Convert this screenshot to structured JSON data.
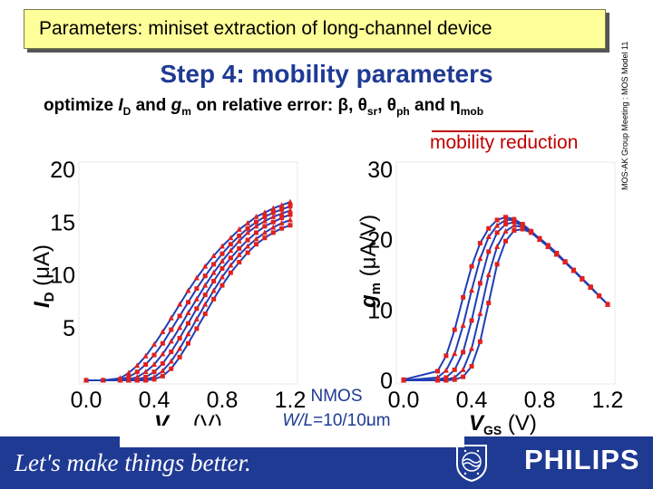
{
  "slide": {
    "title": "Parameters: miniset extraction of long-channel device",
    "subtitle": "Step 4: mobility parameters",
    "goal_prefix": "optimize ",
    "goal_id": "I",
    "goal_id_sub": "D",
    "goal_and": " and ",
    "goal_gm": "g",
    "goal_gm_sub": "m",
    "goal_suffix": " on relative error: β, θ",
    "goal_sr": "sr",
    "goal_comma": ", θ",
    "goal_ph": "ph",
    "goal_and2": " and η",
    "goal_mob": "mob",
    "mobility_note": "mobility reduction",
    "side_text": "MOS-AK Group Meeting : MOS Model 11",
    "device": "NMOS",
    "geometry_label": "W/L",
    "geometry_value": "=10/10μm",
    "slogan": "Let's make things better.",
    "brand": "PHILIPS",
    "colors": {
      "title_bg": "#ffff99",
      "accent": "#1f3a93",
      "model_line": "#1f3fb5",
      "measurement": "#e0201f",
      "note": "#c00000"
    }
  },
  "chart_data": [
    {
      "type": "line",
      "xlabel": "VGS (V)",
      "ylabel": "ID (μA)",
      "xlim": [
        0.0,
        1.2
      ],
      "ylim": [
        0,
        20
      ],
      "xticks": [
        "0.0",
        "0.4",
        "0.8",
        "1.2"
      ],
      "yticks": [
        "5",
        "10",
        "15",
        "20"
      ],
      "series_style": {
        "model": "solid line",
        "measurement": "markers"
      },
      "x": [
        0.0,
        0.1,
        0.2,
        0.25,
        0.3,
        0.35,
        0.4,
        0.45,
        0.5,
        0.55,
        0.6,
        0.65,
        0.7,
        0.75,
        0.8,
        0.85,
        0.9,
        0.95,
        1.0,
        1.05,
        1.1,
        1.15,
        1.2
      ],
      "series": [
        {
          "values": [
            0,
            0,
            0,
            0,
            0,
            0,
            0.1,
            0.4,
            1.1,
            2.2,
            3.5,
            4.9,
            6.3,
            7.7,
            9.0,
            10.2,
            11.2,
            12.1,
            12.9,
            13.5,
            14.0,
            14.4,
            14.7
          ]
        },
        {
          "values": [
            0,
            0,
            0,
            0,
            0,
            0.1,
            0.3,
            0.9,
            1.8,
            3.0,
            4.4,
            5.8,
            7.2,
            8.5,
            9.8,
            10.9,
            11.9,
            12.7,
            13.4,
            14.0,
            14.5,
            14.9,
            15.2
          ]
        },
        {
          "values": [
            0,
            0,
            0,
            0,
            0.1,
            0.3,
            0.8,
            1.6,
            2.7,
            4.0,
            5.4,
            6.8,
            8.1,
            9.4,
            10.6,
            11.6,
            12.5,
            13.3,
            14.0,
            14.6,
            15.0,
            15.4,
            15.7
          ]
        },
        {
          "values": [
            0,
            0,
            0,
            0.1,
            0.3,
            0.8,
            1.5,
            2.5,
            3.7,
            5.0,
            6.4,
            7.7,
            9.0,
            10.2,
            11.3,
            12.3,
            13.2,
            14.0,
            14.6,
            15.1,
            15.5,
            15.8,
            16.1
          ]
        },
        {
          "values": [
            0,
            0,
            0.1,
            0.3,
            0.8,
            1.5,
            2.4,
            3.5,
            4.8,
            6.1,
            7.4,
            8.7,
            9.9,
            11.0,
            12.0,
            12.9,
            13.7,
            14.4,
            15.0,
            15.5,
            15.9,
            16.2,
            16.5
          ]
        },
        {
          "values": [
            0,
            0,
            0.2,
            0.7,
            1.4,
            2.3,
            3.4,
            4.6,
            5.9,
            7.2,
            8.5,
            9.7,
            10.8,
            11.8,
            12.7,
            13.5,
            14.3,
            14.9,
            15.5,
            15.9,
            16.3,
            16.6,
            16.9
          ]
        }
      ]
    },
    {
      "type": "line",
      "xlabel": "VGS (V)",
      "ylabel": "gm (μA/V)",
      "xlim": [
        0.0,
        1.2
      ],
      "ylim": [
        0,
        30
      ],
      "xticks": [
        "0.0",
        "0.4",
        "0.8",
        "1.2"
      ],
      "yticks": [
        "0",
        "10",
        "20",
        "30"
      ],
      "series_style": {
        "model": "solid line",
        "measurement": "markers"
      },
      "x": [
        0.0,
        0.2,
        0.25,
        0.3,
        0.35,
        0.4,
        0.45,
        0.5,
        0.55,
        0.6,
        0.65,
        0.7,
        0.75,
        0.8,
        0.85,
        0.9,
        0.95,
        1.0,
        1.05,
        1.1,
        1.15,
        1.2
      ],
      "series": [
        {
          "values": [
            0,
            0,
            0,
            0.1,
            0.5,
            2.0,
            5.5,
            11.0,
            16.5,
            19.8,
            21.3,
            21.5,
            21.0,
            20.2,
            19.2,
            18.1,
            16.9,
            15.7,
            14.5,
            13.3,
            12.0,
            10.8
          ]
        },
        {
          "values": [
            0,
            0,
            0.1,
            0.4,
            1.5,
            4.5,
            9.5,
            15.0,
            19.0,
            21.2,
            22.0,
            21.8,
            21.0,
            20.0,
            19.0,
            17.9,
            16.8,
            15.6,
            14.4,
            13.2,
            12.0,
            10.8
          ]
        },
        {
          "values": [
            0,
            0.1,
            0.4,
            1.5,
            4.0,
            8.5,
            13.8,
            18.3,
            21.0,
            22.2,
            22.5,
            22.0,
            21.1,
            20.1,
            19.0,
            17.9,
            16.8,
            15.6,
            14.4,
            13.2,
            12.0,
            10.8
          ]
        },
        {
          "values": [
            0,
            0.4,
            1.4,
            3.8,
            7.8,
            12.8,
            17.3,
            20.4,
            22.0,
            22.8,
            22.8,
            22.1,
            21.2,
            20.1,
            19.0,
            17.9,
            16.8,
            15.6,
            14.4,
            13.2,
            12.0,
            10.8
          ]
        },
        {
          "values": [
            0.1,
            1.3,
            3.5,
            7.2,
            11.8,
            16.2,
            19.5,
            21.6,
            22.8,
            23.2,
            22.9,
            22.2,
            21.2,
            20.1,
            19.0,
            17.9,
            16.8,
            15.6,
            14.4,
            13.2,
            12.0,
            10.8
          ]
        }
      ]
    }
  ]
}
